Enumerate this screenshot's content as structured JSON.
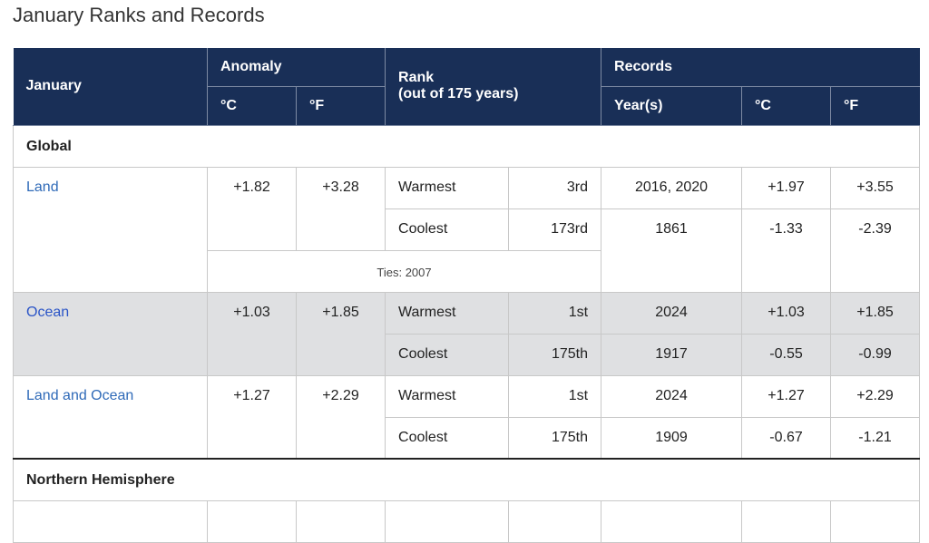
{
  "title": "January Ranks and Records",
  "header": {
    "period": "January",
    "anomaly": "Anomaly",
    "anomaly_c": "°C",
    "anomaly_f": "°F",
    "rank_line1": "Rank",
    "rank_line2": "(out of 175 years)",
    "records": "Records",
    "years": "Year(s)",
    "records_c": "°C",
    "records_f": "°F"
  },
  "sections": [
    {
      "name": "Global",
      "regions": [
        {
          "name": "Land",
          "anomaly_c": "+1.82",
          "anomaly_f": "+3.28",
          "warmest": {
            "label": "Warmest",
            "rank": "3rd",
            "years": "2016, 2020",
            "c": "+1.97",
            "f": "+3.55"
          },
          "coolest": {
            "label": "Coolest",
            "rank": "173rd",
            "years": "1861",
            "c": "-1.33",
            "f": "-2.39"
          },
          "ties": "Ties: 2007"
        },
        {
          "name": "Ocean",
          "anomaly_c": "+1.03",
          "anomaly_f": "+1.85",
          "warmest": {
            "label": "Warmest",
            "rank": "1st",
            "years": "2024",
            "c": "+1.03",
            "f": "+1.85"
          },
          "coolest": {
            "label": "Coolest",
            "rank": "175th",
            "years": "1917",
            "c": "-0.55",
            "f": "-0.99"
          }
        },
        {
          "name": "Land and Ocean",
          "anomaly_c": "+1.27",
          "anomaly_f": "+2.29",
          "warmest": {
            "label": "Warmest",
            "rank": "1st",
            "years": "2024",
            "c": "+1.27",
            "f": "+2.29"
          },
          "coolest": {
            "label": "Coolest",
            "rank": "175th",
            "years": "1909",
            "c": "-0.67",
            "f": "-1.21"
          }
        }
      ]
    },
    {
      "name": "Northern Hemisphere",
      "regions": []
    }
  ],
  "colors": {
    "header_bg": "#192f57",
    "link": "#2f6ab8",
    "grey_row": "#dfe0e2"
  }
}
